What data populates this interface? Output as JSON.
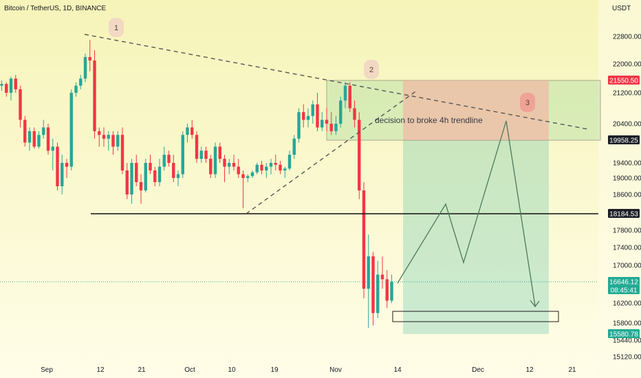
{
  "header": {
    "title": "Bitcoin / TetherUS, 1D, BINANCE",
    "currency": "USDT"
  },
  "colors": {
    "up": "#26a69a",
    "down": "#f23645",
    "bg_top": "#f6f4b8",
    "bg_bottom": "#fffde8"
  },
  "annotations": {
    "text": "decision to broke 4h trendline",
    "labels": [
      "1",
      "2",
      "3"
    ]
  },
  "chart_data": {
    "type": "candlestick",
    "y_axis": {
      "ticks": [
        22800,
        22000,
        21200,
        20400,
        19400,
        19000,
        18600,
        17800,
        17400,
        17000,
        16200,
        15800,
        15440,
        15120
      ],
      "tick_labels": [
        "22800.00",
        "22000.00",
        "21200.00",
        "20400.00",
        "19400.00",
        "19000.00",
        "18600.00",
        "17800.00",
        "17400.00",
        "17000.00",
        "16200.00",
        "15800.00",
        "15440.00",
        "15120.00"
      ]
    },
    "x_axis": {
      "ticks": [
        "Sep",
        "12",
        "21",
        "Oct",
        "10",
        "19",
        "Nov",
        "14",
        "Dec",
        "12",
        "21"
      ]
    },
    "price_tags": [
      {
        "label": "21550.50",
        "value": 21550.5,
        "color": "#f23645"
      },
      {
        "label": "19958.25",
        "value": 19958.25,
        "color": "#1c1f26"
      },
      {
        "label": "18184.53",
        "value": 18184.53,
        "color": "#1c1f26"
      },
      {
        "label": "16646.12",
        "value": 16646.12,
        "color": "#22ab94"
      },
      {
        "label": "08:45:41",
        "value": 16420,
        "color": "#22ab94"
      },
      {
        "label": "15580.78",
        "value": 15580.78,
        "color": "#22ab94"
      }
    ],
    "levels": {
      "support": 18184.53,
      "current": 16646.12
    },
    "zones": {
      "resistance_box": [
        19958.25,
        21550.5
      ],
      "target_box": [
        15800,
        16000
      ],
      "position_entry": 19958.25,
      "position_stop": 21550.5,
      "position_target": 15580.78
    },
    "candles": [
      [
        21400,
        21550,
        21250,
        21450
      ],
      [
        21450,
        21500,
        21100,
        21200
      ],
      [
        21200,
        21650,
        21000,
        21600
      ],
      [
        21600,
        21700,
        21200,
        21300
      ],
      [
        21300,
        21400,
        20300,
        20500
      ],
      [
        20500,
        20600,
        19800,
        19900
      ],
      [
        19900,
        20300,
        19700,
        20200
      ],
      [
        20200,
        20300,
        19750,
        19800
      ],
      [
        19800,
        20200,
        19750,
        20100
      ],
      [
        20100,
        20500,
        20000,
        20300
      ],
      [
        20300,
        20400,
        19600,
        19700
      ],
      [
        19700,
        20000,
        19200,
        19800
      ],
      [
        19800,
        19900,
        18700,
        18800
      ],
      [
        18800,
        19600,
        18600,
        19400
      ],
      [
        19400,
        19500,
        19000,
        19300
      ],
      [
        19300,
        21300,
        19200,
        21200
      ],
      [
        21200,
        21500,
        21100,
        21400
      ],
      [
        21400,
        21700,
        21300,
        21600
      ],
      [
        21600,
        22300,
        21500,
        22200
      ],
      [
        22200,
        22700,
        21800,
        22100
      ],
      [
        22100,
        22400,
        20000,
        20200
      ],
      [
        20200,
        20300,
        19800,
        20100
      ],
      [
        20100,
        20300,
        19800,
        20000
      ],
      [
        20000,
        20200,
        19700,
        20100
      ],
      [
        20100,
        20200,
        19600,
        19800
      ],
      [
        19800,
        20200,
        19700,
        20100
      ],
      [
        20100,
        20300,
        19100,
        19200
      ],
      [
        19200,
        19400,
        18500,
        18600
      ],
      [
        18600,
        19500,
        18400,
        19400
      ],
      [
        19400,
        19600,
        18800,
        18900
      ],
      [
        18900,
        19100,
        18400,
        18700
      ],
      [
        18700,
        19500,
        18650,
        19400
      ],
      [
        19400,
        19600,
        19100,
        19200
      ],
      [
        19200,
        19300,
        18800,
        18900
      ],
      [
        18900,
        19500,
        18800,
        19300
      ],
      [
        19300,
        19800,
        19200,
        19600
      ],
      [
        19600,
        19700,
        19300,
        19400
      ],
      [
        19400,
        19600,
        18900,
        19000
      ],
      [
        19000,
        19200,
        18800,
        19100
      ],
      [
        19100,
        20200,
        19000,
        20100
      ],
      [
        20100,
        20400,
        19900,
        20300
      ],
      [
        20300,
        20500,
        20000,
        20100
      ],
      [
        20100,
        20200,
        19400,
        19500
      ],
      [
        19500,
        19800,
        19400,
        19700
      ],
      [
        19700,
        19800,
        19400,
        19500
      ],
      [
        19500,
        19600,
        19000,
        19100
      ],
      [
        19100,
        19900,
        19000,
        19800
      ],
      [
        19800,
        19900,
        19400,
        19500
      ],
      [
        19500,
        19600,
        18900,
        19300
      ],
      [
        19300,
        19500,
        19100,
        19400
      ],
      [
        19400,
        19600,
        19200,
        19300
      ],
      [
        19300,
        19500,
        19000,
        19100
      ],
      [
        19100,
        19200,
        18300,
        19000
      ],
      [
        19000,
        19100,
        18900,
        19050
      ],
      [
        19050,
        19200,
        19000,
        19150
      ],
      [
        19150,
        19400,
        19100,
        19350
      ],
      [
        19350,
        19450,
        19100,
        19200
      ],
      [
        19200,
        19400,
        19000,
        19300
      ],
      [
        19300,
        19500,
        19100,
        19400
      ],
      [
        19400,
        19600,
        19200,
        19350
      ],
      [
        19350,
        19450,
        19100,
        19200
      ],
      [
        19200,
        19300,
        19000,
        19250
      ],
      [
        19250,
        19700,
        19200,
        19600
      ],
      [
        19600,
        20100,
        19500,
        20000
      ],
      [
        20000,
        20800,
        19900,
        20700
      ],
      [
        20700,
        20900,
        20300,
        20500
      ],
      [
        20500,
        20800,
        20300,
        20600
      ],
      [
        20600,
        21000,
        20400,
        20900
      ],
      [
        20900,
        21200,
        20200,
        20300
      ],
      [
        20300,
        20700,
        20200,
        20500
      ],
      [
        20500,
        20800,
        20200,
        20400
      ],
      [
        20400,
        20700,
        20100,
        20200
      ],
      [
        20200,
        20600,
        20100,
        20400
      ],
      [
        20400,
        21100,
        20300,
        21000
      ],
      [
        21000,
        21500,
        20800,
        21400
      ],
      [
        21400,
        21500,
        20700,
        20800
      ],
      [
        20800,
        21000,
        20300,
        20500
      ],
      [
        20500,
        20700,
        18500,
        18700
      ],
      [
        18700,
        18900,
        16300,
        16500
      ],
      [
        16500,
        17700,
        15700,
        17200
      ],
      [
        17200,
        17300,
        15750,
        16000
      ],
      [
        16000,
        17100,
        15900,
        16800
      ],
      [
        16800,
        17200,
        16500,
        16700
      ],
      [
        16700,
        16900,
        16100,
        16250
      ],
      [
        16250,
        16800,
        16200,
        16646
      ]
    ]
  }
}
